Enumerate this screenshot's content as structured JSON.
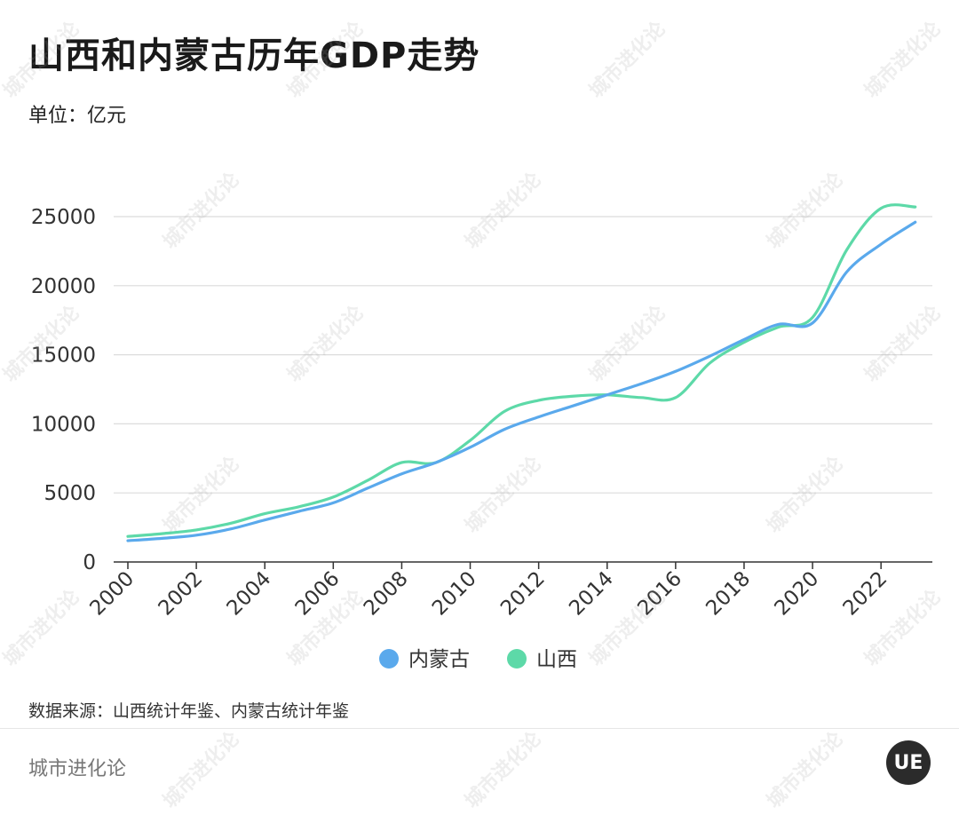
{
  "title": "山西和内蒙古历年GDP走势",
  "unit": "单位：亿元",
  "source": "数据来源：山西统计年鉴、内蒙古统计年鉴",
  "brand": "城市进化论",
  "logo_text": "UE",
  "watermark": "城市进化论",
  "chart_data": {
    "type": "line",
    "title": "山西和内蒙古历年GDP走势",
    "xlabel": "",
    "ylabel": "",
    "x": [
      2000,
      2001,
      2002,
      2003,
      2004,
      2005,
      2006,
      2007,
      2008,
      2009,
      2010,
      2011,
      2012,
      2013,
      2014,
      2015,
      2016,
      2017,
      2018,
      2019,
      2020,
      2021,
      2022,
      2023
    ],
    "x_ticks": [
      "2000",
      "2002",
      "2004",
      "2006",
      "2008",
      "2010",
      "2012",
      "2014",
      "2016",
      "2018",
      "2020",
      "2022"
    ],
    "ylim": [
      0,
      25000
    ],
    "y_ticks": [
      "0",
      "5000",
      "10000",
      "15000",
      "20000",
      "25000"
    ],
    "grid": true,
    "legend_position": "bottom-center",
    "series": [
      {
        "name": "内蒙古",
        "color": "#5aa9ec",
        "values": [
          1540,
          1710,
          1940,
          2390,
          3040,
          3670,
          4280,
          5340,
          6380,
          7200,
          8300,
          9600,
          10500,
          11300,
          12100,
          12900,
          13800,
          14900,
          16100,
          17200,
          17300,
          21000,
          23000,
          24600
        ]
      },
      {
        "name": "山西",
        "color": "#5dd9a8",
        "values": [
          1850,
          2050,
          2320,
          2800,
          3500,
          4000,
          4700,
          5900,
          7200,
          7200,
          8800,
          10900,
          11700,
          12000,
          12100,
          11900,
          11900,
          14400,
          15900,
          17000,
          17700,
          22600,
          25600,
          25700
        ]
      }
    ]
  }
}
